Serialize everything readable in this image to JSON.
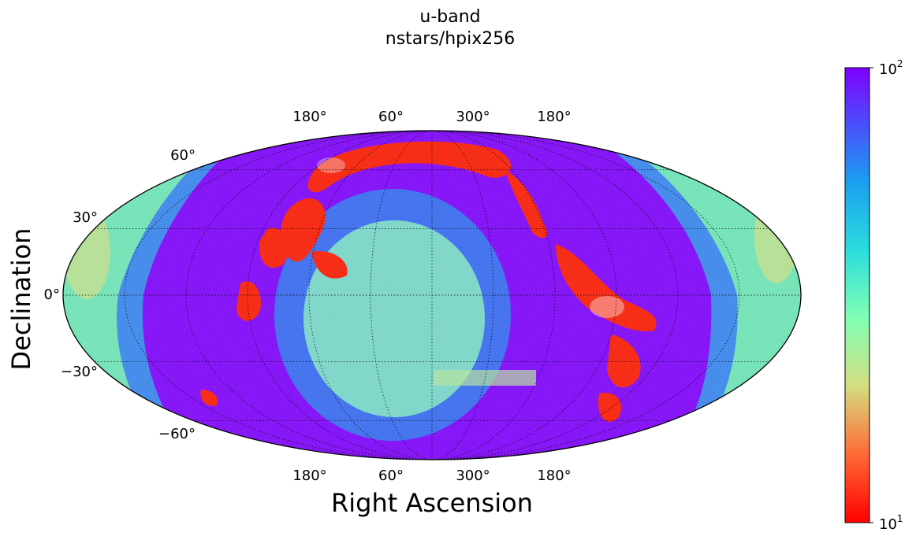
{
  "chart_data": {
    "type": "heatmap",
    "projection": "mollweide",
    "title_line1": "u-band",
    "title_line2": "nstars/hpix256",
    "xlabel": "Right Ascension",
    "ylabel": "Declination",
    "ra_tick_labels": [
      "180°",
      "60°",
      "300°",
      "180°"
    ],
    "dec_tick_labels": [
      "60°",
      "30°",
      "0°",
      "−30°",
      "−60°"
    ],
    "dec_tick_values": [
      60,
      30,
      0,
      -30,
      -60
    ],
    "grid": true,
    "colorbar": {
      "scale": "log",
      "range": [
        10,
        100
      ],
      "colormap": "rainbow",
      "top_label": {
        "base": "10",
        "exp": "2"
      },
      "bottom_label": {
        "base": "10",
        "exp": "1"
      }
    },
    "colors": {
      "low": "#ff0000",
      "high": "#7f00ff",
      "mid_green": "#80ffb4",
      "mid_cyan": "#1ab2e6"
    }
  }
}
